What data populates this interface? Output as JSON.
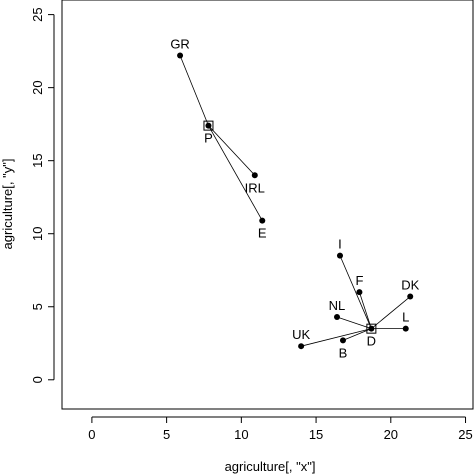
{
  "chart_data": {
    "type": "scatter",
    "xlabel": "agriculture[, \"x\"]",
    "ylabel": "agriculture[, \"y\"]",
    "xlim": [
      -2,
      25.5
    ],
    "ylim": [
      -2,
      26
    ],
    "x_ticks": [
      "0",
      "5",
      "10",
      "15",
      "20",
      "25"
    ],
    "y_ticks": [
      "0",
      "5",
      "10",
      "15",
      "20",
      "25"
    ],
    "grid": false,
    "points": [
      {
        "label": "GR",
        "x": 5.9,
        "y": 22.2,
        "label_pos": "above"
      },
      {
        "label": "P",
        "x": 7.8,
        "y": 17.4,
        "label_pos": "below",
        "medoid": true
      },
      {
        "label": "IRL",
        "x": 10.9,
        "y": 14.0,
        "label_pos": "below"
      },
      {
        "label": "E",
        "x": 11.4,
        "y": 10.9,
        "label_pos": "below"
      },
      {
        "label": "I",
        "x": 16.6,
        "y": 8.5,
        "label_pos": "above"
      },
      {
        "label": "F",
        "x": 17.9,
        "y": 6.0,
        "label_pos": "above"
      },
      {
        "label": "DK",
        "x": 21.3,
        "y": 5.7,
        "label_pos": "above"
      },
      {
        "label": "NL",
        "x": 16.4,
        "y": 4.3,
        "label_pos": "above"
      },
      {
        "label": "L",
        "x": 21.0,
        "y": 3.5,
        "label_pos": "above"
      },
      {
        "label": "D",
        "x": 18.7,
        "y": 3.5,
        "label_pos": "below",
        "medoid": true
      },
      {
        "label": "UK",
        "x": 14.0,
        "y": 2.3,
        "label_pos": "above"
      },
      {
        "label": "B",
        "x": 16.8,
        "y": 2.7,
        "label_pos": "below"
      }
    ],
    "clusters": [
      {
        "medoid": "P",
        "members": [
          "GR",
          "IRL",
          "E"
        ]
      },
      {
        "medoid": "D",
        "members": [
          "I",
          "F",
          "DK",
          "NL",
          "L",
          "UK",
          "B"
        ]
      }
    ]
  }
}
